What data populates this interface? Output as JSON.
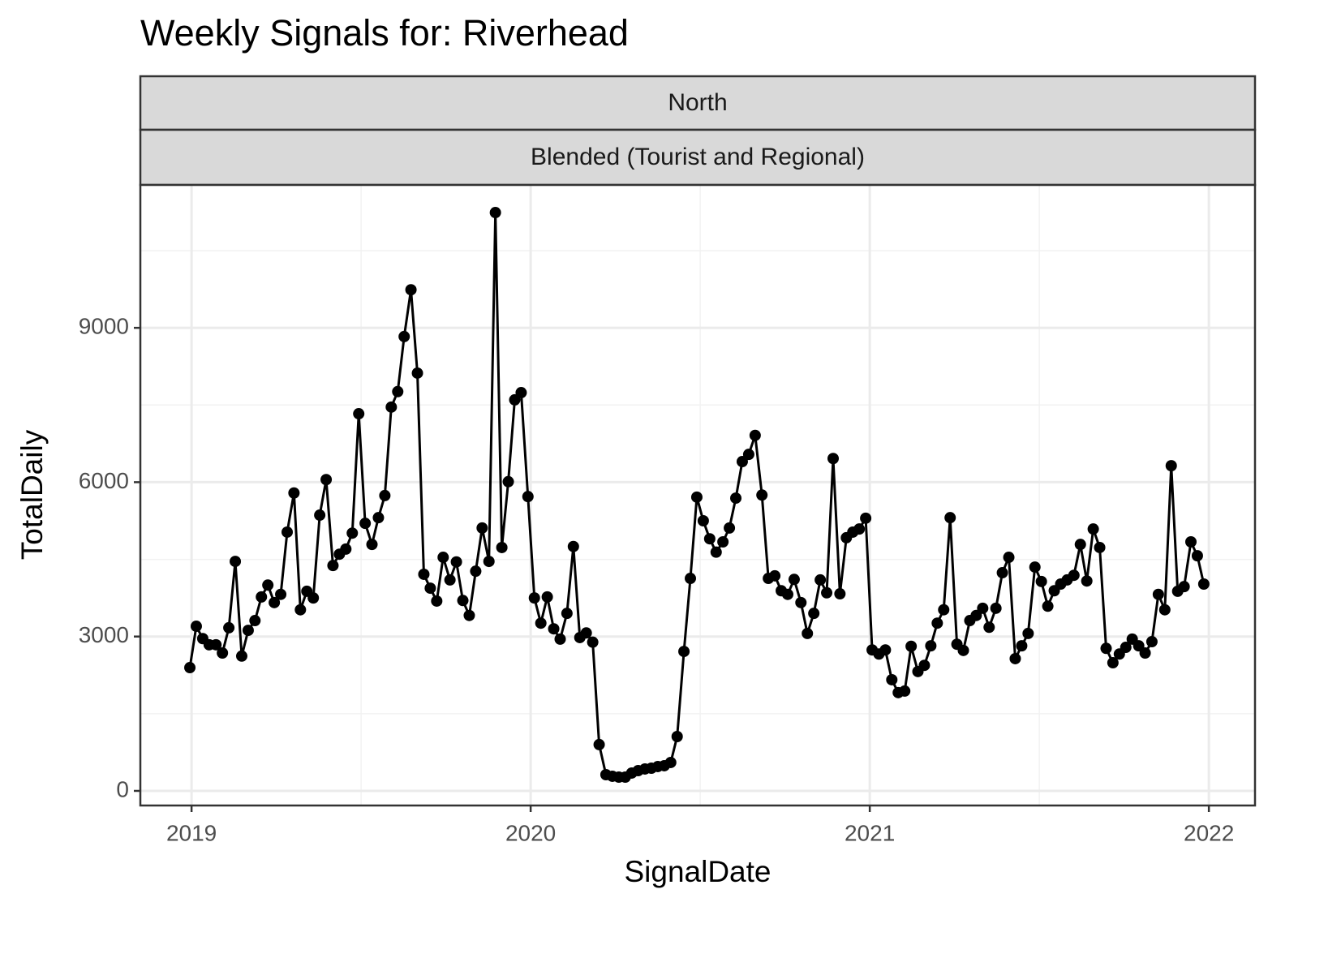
{
  "chart_data": {
    "type": "line",
    "title": "Weekly Signals for: Riverhead",
    "facet_labels": [
      "North",
      "Blended (Tourist and Regional)"
    ],
    "x_label": "SignalDate",
    "y_label": "TotalDaily",
    "xlim": [
      2018.849,
      2022.136
    ],
    "ylim": [
      -284,
      11777
    ],
    "xticks": [
      2019,
      2020,
      2021,
      2022
    ],
    "yticks": [
      0,
      3000,
      6000,
      9000
    ],
    "xminorticks": [
      2019.5,
      2020.5,
      2021.5
    ],
    "yminorticks": [
      1500,
      4500,
      7500,
      10500
    ],
    "grid": true,
    "markers": true,
    "x": [
      2018.995,
      2019.014,
      2019.033,
      2019.052,
      2019.072,
      2019.091,
      2019.11,
      2019.129,
      2019.148,
      2019.167,
      2019.187,
      2019.206,
      2019.225,
      2019.244,
      2019.263,
      2019.282,
      2019.302,
      2019.321,
      2019.34,
      2019.359,
      2019.378,
      2019.397,
      2019.417,
      2019.436,
      2019.455,
      2019.474,
      2019.493,
      2019.512,
      2019.532,
      2019.551,
      2019.57,
      2019.589,
      2019.608,
      2019.627,
      2019.647,
      2019.666,
      2019.685,
      2019.704,
      2019.723,
      2019.742,
      2019.762,
      2019.781,
      2019.8,
      2019.819,
      2019.838,
      2019.857,
      2019.877,
      2019.896,
      2019.915,
      2019.934,
      2019.953,
      2019.972,
      2019.992,
      2020.011,
      2020.03,
      2020.049,
      2020.068,
      2020.087,
      2020.107,
      2020.126,
      2020.145,
      2020.164,
      2020.183,
      2020.202,
      2020.222,
      2020.241,
      2020.26,
      2020.279,
      2020.298,
      2020.317,
      2020.337,
      2020.356,
      2020.375,
      2020.394,
      2020.413,
      2020.432,
      2020.452,
      2020.471,
      2020.49,
      2020.509,
      2020.528,
      2020.547,
      2020.567,
      2020.586,
      2020.605,
      2020.624,
      2020.643,
      2020.662,
      2020.682,
      2020.701,
      2020.72,
      2020.739,
      2020.758,
      2020.777,
      2020.797,
      2020.816,
      2020.835,
      2020.854,
      2020.873,
      2020.892,
      2020.912,
      2020.931,
      2020.95,
      2020.969,
      2020.988,
      2021.007,
      2021.027,
      2021.046,
      2021.065,
      2021.084,
      2021.103,
      2021.122,
      2021.142,
      2021.161,
      2021.18,
      2021.199,
      2021.218,
      2021.237,
      2021.257,
      2021.276,
      2021.295,
      2021.314,
      2021.333,
      2021.352,
      2021.372,
      2021.391,
      2021.41,
      2021.429,
      2021.448,
      2021.467,
      2021.487,
      2021.506,
      2021.525,
      2021.544,
      2021.563,
      2021.582,
      2021.602,
      2021.621,
      2021.64,
      2021.659,
      2021.678,
      2021.697,
      2021.717,
      2021.736,
      2021.755,
      2021.774,
      2021.793,
      2021.812,
      2021.832,
      2021.851,
      2021.87,
      2021.889,
      2021.908,
      2021.927,
      2021.947,
      2021.966,
      2021.985
    ],
    "series": [
      {
        "name": "TotalDaily",
        "color": "#000000",
        "values": [
          2396,
          3200,
          2960,
          2840,
          2840,
          2680,
          3170,
          4460,
          2620,
          3120,
          3310,
          3770,
          4000,
          3660,
          3820,
          5030,
          5790,
          3520,
          3880,
          3750,
          5360,
          6050,
          4380,
          4600,
          4700,
          5010,
          7330,
          5200,
          4790,
          5310,
          5740,
          7460,
          7760,
          8830,
          9740,
          8120,
          4210,
          3940,
          3690,
          4540,
          4100,
          4450,
          3700,
          3410,
          4270,
          5110,
          4460,
          11240,
          4730,
          6010,
          7600,
          7740,
          5720,
          3750,
          3260,
          3770,
          3150,
          2950,
          3450,
          4750,
          2980,
          3070,
          2890,
          900,
          315,
          284,
          268,
          268,
          347,
          394,
          426,
          441,
          473,
          489,
          552,
          1056,
          2710,
          4130,
          5710,
          5250,
          4900,
          4640,
          4840,
          5110,
          5690,
          6400,
          6540,
          6910,
          5750,
          4130,
          4180,
          3890,
          3820,
          4110,
          3660,
          3060,
          3450,
          4100,
          3850,
          6460,
          3830,
          4920,
          5030,
          5090,
          5300,
          2740,
          2660,
          2740,
          2160,
          1910,
          1940,
          2810,
          2320,
          2440,
          2820,
          3260,
          3520,
          5310,
          2850,
          2730,
          3310,
          3410,
          3550,
          3180,
          3550,
          4240,
          4540,
          2570,
          2820,
          3060,
          4350,
          4070,
          3590,
          3890,
          4020,
          4100,
          4190,
          4790,
          4080,
          5090,
          4730,
          2770,
          2490,
          2660,
          2790,
          2950,
          2820,
          2680,
          2900,
          3820,
          3520,
          6320,
          3880,
          3970,
          4840,
          4570,
          4020
        ]
      }
    ]
  }
}
